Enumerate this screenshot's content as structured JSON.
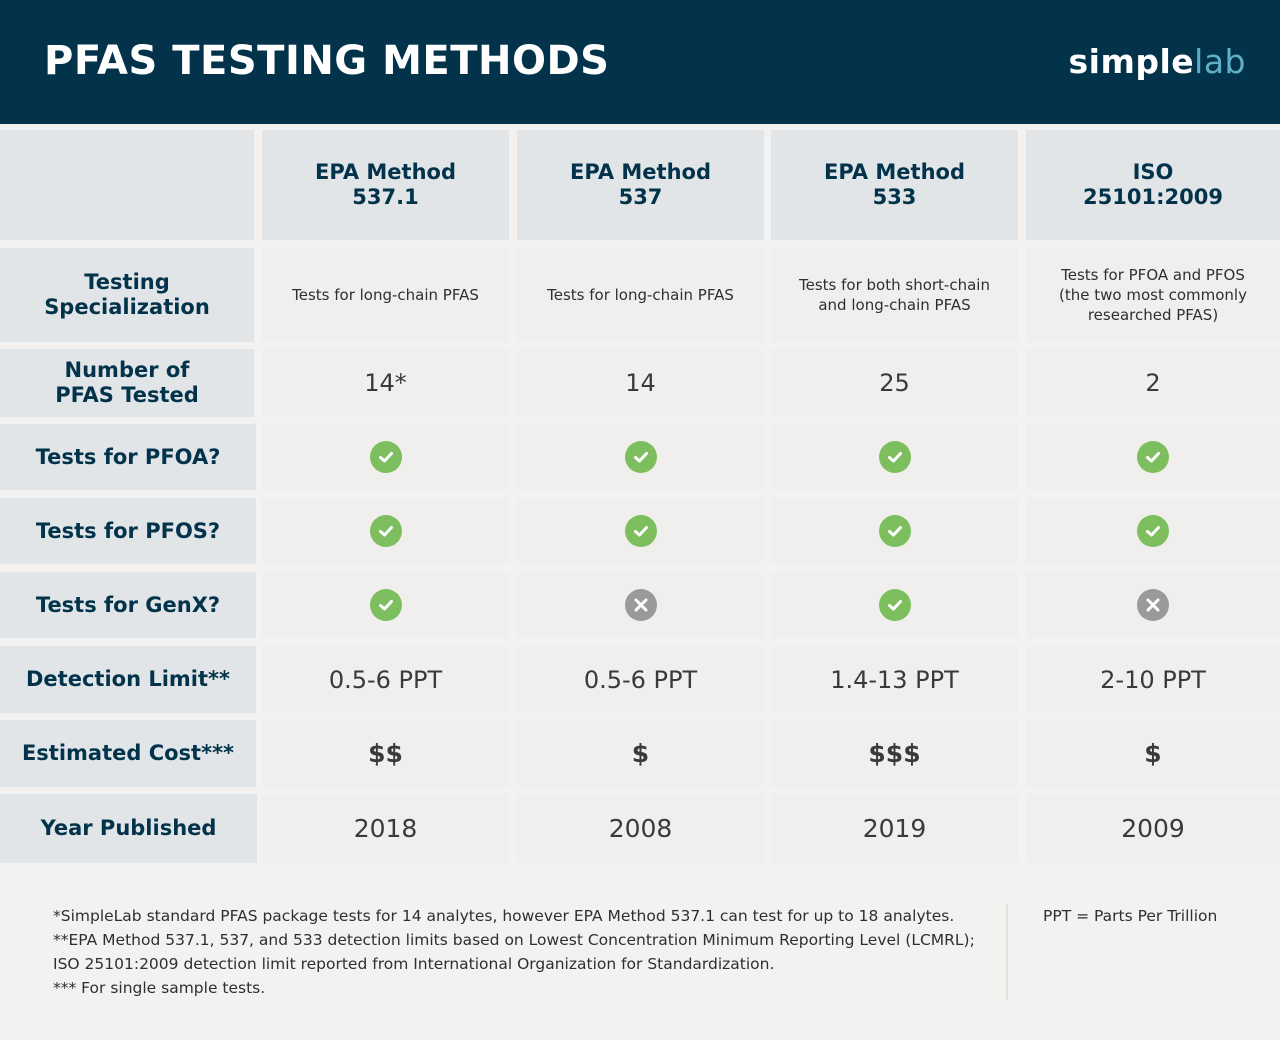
{
  "header": {
    "title": "PFAS TESTING METHODS",
    "logo_primary": "simple",
    "logo_accent": "lab",
    "logo_accent_color": "#5fb0c7",
    "background_color": "#02334b"
  },
  "table": {
    "columns": [
      {
        "line1": "EPA Method",
        "line2": "537.1"
      },
      {
        "line1": "EPA Method",
        "line2": "537"
      },
      {
        "line1": "EPA Method",
        "line2": "533"
      },
      {
        "line1": "ISO",
        "line2": "25101:2009"
      }
    ],
    "rows": {
      "specialization": {
        "label_line1": "Testing",
        "label_line2": "Specialization",
        "values": [
          {
            "line1": "Tests for long-chain PFAS",
            "line2": "",
            "line3": ""
          },
          {
            "line1": "Tests for long-chain PFAS",
            "line2": "",
            "line3": ""
          },
          {
            "line1": "Tests for both short-chain",
            "line2": "and long-chain PFAS",
            "line3": ""
          },
          {
            "line1": "Tests for PFOA and PFOS",
            "line2": "(the two most commonly",
            "line3": "researched PFAS)"
          }
        ]
      },
      "number_tested": {
        "label_line1": "Number of",
        "label_line2": "PFAS Tested",
        "values": [
          "14*",
          "14",
          "25",
          "2"
        ]
      },
      "pfoa": {
        "label": "Tests for PFOA?",
        "values": [
          "yes",
          "yes",
          "yes",
          "yes"
        ]
      },
      "pfos": {
        "label": "Tests for PFOS?",
        "values": [
          "yes",
          "yes",
          "yes",
          "yes"
        ]
      },
      "genx": {
        "label": "Tests for GenX?",
        "values": [
          "yes",
          "no",
          "yes",
          "no"
        ]
      },
      "detection_limit": {
        "label": "Detection Limit**",
        "values": [
          "0.5-6 PPT",
          "0.5-6 PPT",
          "1.4-13 PPT",
          "2-10 PPT"
        ]
      },
      "cost": {
        "label": "Estimated Cost***",
        "values": [
          "$$",
          "$",
          "$$$",
          "$"
        ]
      },
      "year": {
        "label": "Year Published",
        "values": [
          "2018",
          "2008",
          "2019",
          "2009"
        ]
      }
    },
    "icon_colors": {
      "yes": "#7dbf5e",
      "no": "#9a9a9a"
    },
    "icon_names": {
      "yes": "check-circle-icon",
      "no": "x-circle-icon"
    }
  },
  "footer": {
    "notes": [
      "*SimpleLab standard PFAS package tests for 14 analytes, however EPA Method 537.1 can test for up to 18 analytes.",
      "**EPA Method 537.1, 537, and 533 detection limits based on Lowest Concentration Minimum Reporting Level (LCMRL);",
      "ISO 25101:2009 detection limit reported from International Organization for Standardization.",
      "*** For single sample tests."
    ],
    "ppt_note": "PPT = Parts Per Trillion"
  }
}
